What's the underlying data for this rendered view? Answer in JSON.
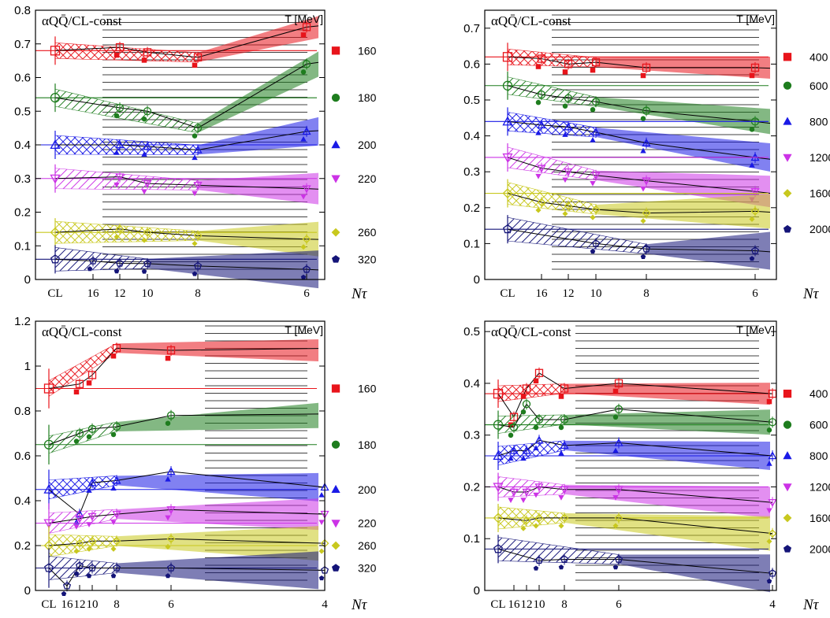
{
  "chart_data": [
    {
      "type": "line",
      "title": "αQQ̄/CL-const",
      "xlabel": "Nτ",
      "legend_title": "T [MeV]",
      "ylim": [
        0,
        0.8
      ],
      "yticks": [
        "0",
        "0.1",
        "0.2",
        "0.3",
        "0.4",
        "0.5",
        "0.6",
        "0.7",
        "0.8"
      ],
      "xticks": [
        "CL",
        "16",
        "12",
        "10",
        "8",
        "6"
      ],
      "series": [
        {
          "name": "160",
          "color": "#e8141b",
          "marker": "square",
          "cl": 0.68,
          "values": [
            {
              "nt": 12,
              "y": 0.69
            },
            {
              "nt": 10,
              "y": 0.675
            },
            {
              "nt": 8,
              "y": 0.66
            },
            {
              "nt": 6,
              "y": 0.75
            }
          ]
        },
        {
          "name": "180",
          "color": "#1e7d1e",
          "marker": "circle",
          "cl": 0.54,
          "values": [
            {
              "nt": 12,
              "y": 0.51
            },
            {
              "nt": 10,
              "y": 0.5
            },
            {
              "nt": 8,
              "y": 0.45
            },
            {
              "nt": 6,
              "y": 0.64
            }
          ]
        },
        {
          "name": "200",
          "color": "#1a1ae6",
          "marker": "triangle-up",
          "cl": 0.4,
          "values": [
            {
              "nt": 12,
              "y": 0.4
            },
            {
              "nt": 10,
              "y": 0.395
            },
            {
              "nt": 8,
              "y": 0.385
            },
            {
              "nt": 6,
              "y": 0.44
            }
          ]
        },
        {
          "name": "220",
          "color": "#cc33e6",
          "marker": "triangle-down",
          "cl": 0.3,
          "values": [
            {
              "nt": 12,
              "y": 0.305
            },
            {
              "nt": 10,
              "y": 0.285
            },
            {
              "nt": 8,
              "y": 0.28
            },
            {
              "nt": 6,
              "y": 0.27
            }
          ]
        },
        {
          "name": "260",
          "color": "#c8c81e",
          "marker": "diamond",
          "cl": 0.14,
          "values": [
            {
              "nt": 12,
              "y": 0.15
            },
            {
              "nt": 10,
              "y": 0.14
            },
            {
              "nt": 8,
              "y": 0.13
            },
            {
              "nt": 6,
              "y": 0.12
            }
          ]
        },
        {
          "name": "320",
          "color": "#141478",
          "marker": "pentagon",
          "cl": 0.06,
          "values": [
            {
              "nt": 16,
              "y": 0.055
            },
            {
              "nt": 12,
              "y": 0.048
            },
            {
              "nt": 10,
              "y": 0.047
            },
            {
              "nt": 8,
              "y": 0.04
            },
            {
              "nt": 6,
              "y": 0.03
            }
          ]
        }
      ]
    },
    {
      "type": "line",
      "title": "αQQ̄/CL-const",
      "xlabel": "Nτ",
      "legend_title": "T [MeV]",
      "ylim": [
        0,
        0.75
      ],
      "yticks": [
        "0",
        "0.1",
        "0.2",
        "0.3",
        "0.4",
        "0.5",
        "0.6",
        "0.7"
      ],
      "xticks": [
        "CL",
        "16",
        "12",
        "10",
        "8",
        "6"
      ],
      "series": [
        {
          "name": "400",
          "color": "#e8141b",
          "marker": "square",
          "cl": 0.62,
          "values": [
            {
              "nt": 16,
              "y": 0.615
            },
            {
              "nt": 12,
              "y": 0.6
            },
            {
              "nt": 10,
              "y": 0.605
            },
            {
              "nt": 8,
              "y": 0.59
            },
            {
              "nt": 6,
              "y": 0.59
            }
          ]
        },
        {
          "name": "600",
          "color": "#1e7d1e",
          "marker": "circle",
          "cl": 0.54,
          "values": [
            {
              "nt": 16,
              "y": 0.515
            },
            {
              "nt": 12,
              "y": 0.505
            },
            {
              "nt": 10,
              "y": 0.495
            },
            {
              "nt": 8,
              "y": 0.47
            },
            {
              "nt": 6,
              "y": 0.44
            }
          ]
        },
        {
          "name": "800",
          "color": "#1a1ae6",
          "marker": "triangle-up",
          "cl": 0.44,
          "values": [
            {
              "nt": 16,
              "y": 0.43
            },
            {
              "nt": 12,
              "y": 0.425
            },
            {
              "nt": 10,
              "y": 0.41
            },
            {
              "nt": 8,
              "y": 0.38
            },
            {
              "nt": 6,
              "y": 0.34
            }
          ]
        },
        {
          "name": "1200",
          "color": "#cc33e6",
          "marker": "triangle-down",
          "cl": 0.34,
          "values": [
            {
              "nt": 16,
              "y": 0.31
            },
            {
              "nt": 12,
              "y": 0.3
            },
            {
              "nt": 10,
              "y": 0.29
            },
            {
              "nt": 8,
              "y": 0.275
            },
            {
              "nt": 6,
              "y": 0.245
            }
          ]
        },
        {
          "name": "1600",
          "color": "#c8c81e",
          "marker": "diamond",
          "cl": 0.24,
          "values": [
            {
              "nt": 16,
              "y": 0.215
            },
            {
              "nt": 12,
              "y": 0.205
            },
            {
              "nt": 10,
              "y": 0.195
            },
            {
              "nt": 8,
              "y": 0.185
            },
            {
              "nt": 6,
              "y": 0.19
            }
          ]
        },
        {
          "name": "2000",
          "color": "#141478",
          "marker": "pentagon",
          "cl": 0.14,
          "values": [
            {
              "nt": 10,
              "y": 0.1
            },
            {
              "nt": 8,
              "y": 0.085
            },
            {
              "nt": 6,
              "y": 0.08
            }
          ]
        }
      ]
    },
    {
      "type": "line",
      "title": "αQQ̄/CL-const",
      "xlabel": "Nτ",
      "legend_title": "T [MeV]",
      "ylim": [
        0,
        1.2
      ],
      "yticks": [
        "0",
        "0.2",
        "0.4",
        "0.6",
        "0.8",
        "1",
        "1.2"
      ],
      "xticks": [
        "CL",
        "16",
        "12",
        "10",
        "8",
        "6",
        "4"
      ],
      "series": [
        {
          "name": "160",
          "color": "#e8141b",
          "marker": "square",
          "cl": 0.9,
          "values": [
            {
              "nt": 12,
              "y": 0.92
            },
            {
              "nt": 10,
              "y": 0.96
            },
            {
              "nt": 8,
              "y": 1.08
            },
            {
              "nt": 6,
              "y": 1.07
            }
          ]
        },
        {
          "name": "180",
          "color": "#1e7d1e",
          "marker": "circle",
          "cl": 0.65,
          "values": [
            {
              "nt": 12,
              "y": 0.7
            },
            {
              "nt": 10,
              "y": 0.72
            },
            {
              "nt": 8,
              "y": 0.73
            },
            {
              "nt": 6,
              "y": 0.78
            }
          ]
        },
        {
          "name": "200",
          "color": "#1a1ae6",
          "marker": "triangle-up",
          "cl": 0.45,
          "values": [
            {
              "nt": 12,
              "y": 0.34
            },
            {
              "nt": 10,
              "y": 0.48
            },
            {
              "nt": 8,
              "y": 0.49
            },
            {
              "nt": 6,
              "y": 0.53
            },
            {
              "nt": 4,
              "y": 0.46
            }
          ]
        },
        {
          "name": "220",
          "color": "#cc33e6",
          "marker": "triangle-down",
          "cl": 0.3,
          "values": [
            {
              "nt": 12,
              "y": 0.32
            },
            {
              "nt": 10,
              "y": 0.33
            },
            {
              "nt": 8,
              "y": 0.34
            },
            {
              "nt": 6,
              "y": 0.36
            },
            {
              "nt": 4,
              "y": 0.34
            }
          ]
        },
        {
          "name": "260",
          "color": "#c8c81e",
          "marker": "diamond",
          "cl": 0.2,
          "values": [
            {
              "nt": 12,
              "y": 0.21
            },
            {
              "nt": 10,
              "y": 0.22
            },
            {
              "nt": 8,
              "y": 0.22
            },
            {
              "nt": 6,
              "y": 0.23
            },
            {
              "nt": 4,
              "y": 0.21
            }
          ]
        },
        {
          "name": "320",
          "color": "#141478",
          "marker": "pentagon",
          "cl": 0.1,
          "values": [
            {
              "nt": 16,
              "y": 0.02
            },
            {
              "nt": 12,
              "y": 0.11
            },
            {
              "nt": 10,
              "y": 0.1
            },
            {
              "nt": 8,
              "y": 0.1
            },
            {
              "nt": 6,
              "y": 0.1
            },
            {
              "nt": 4,
              "y": 0.09
            }
          ]
        }
      ]
    },
    {
      "type": "line",
      "title": "αQQ̄/CL-const",
      "xlabel": "Nτ",
      "legend_title": "T [MeV]",
      "ylim": [
        0,
        0.52
      ],
      "yticks": [
        "0",
        "0.1",
        "0.2",
        "0.3",
        "0.4",
        "0.5"
      ],
      "xticks": [
        "CL",
        "16",
        "12",
        "10",
        "8",
        "6",
        "4"
      ],
      "series": [
        {
          "name": "400",
          "color": "#e8141b",
          "marker": "square",
          "cl": 0.38,
          "values": [
            {
              "nt": 16,
              "y": 0.335
            },
            {
              "nt": 12,
              "y": 0.39
            },
            {
              "nt": 10,
              "y": 0.42
            },
            {
              "nt": 8,
              "y": 0.39
            },
            {
              "nt": 6,
              "y": 0.4
            },
            {
              "nt": 4,
              "y": 0.38
            }
          ]
        },
        {
          "name": "600",
          "color": "#1e7d1e",
          "marker": "circle",
          "cl": 0.32,
          "values": [
            {
              "nt": 16,
              "y": 0.315
            },
            {
              "nt": 12,
              "y": 0.36
            },
            {
              "nt": 10,
              "y": 0.33
            },
            {
              "nt": 8,
              "y": 0.33
            },
            {
              "nt": 6,
              "y": 0.35
            },
            {
              "nt": 4,
              "y": 0.325
            }
          ]
        },
        {
          "name": "800",
          "color": "#1a1ae6",
          "marker": "triangle-up",
          "cl": 0.26,
          "values": [
            {
              "nt": 16,
              "y": 0.27
            },
            {
              "nt": 12,
              "y": 0.27
            },
            {
              "nt": 10,
              "y": 0.29
            },
            {
              "nt": 8,
              "y": 0.28
            },
            {
              "nt": 6,
              "y": 0.285
            },
            {
              "nt": 4,
              "y": 0.26
            }
          ]
        },
        {
          "name": "1200",
          "color": "#cc33e6",
          "marker": "triangle-down",
          "cl": 0.2,
          "values": [
            {
              "nt": 16,
              "y": 0.19
            },
            {
              "nt": 12,
              "y": 0.19
            },
            {
              "nt": 10,
              "y": 0.2
            },
            {
              "nt": 8,
              "y": 0.195
            },
            {
              "nt": 6,
              "y": 0.195
            },
            {
              "nt": 4,
              "y": 0.17
            }
          ]
        },
        {
          "name": "1600",
          "color": "#c8c81e",
          "marker": "diamond",
          "cl": 0.14,
          "values": [
            {
              "nt": 12,
              "y": 0.135
            },
            {
              "nt": 10,
              "y": 0.14
            },
            {
              "nt": 8,
              "y": 0.14
            },
            {
              "nt": 6,
              "y": 0.14
            },
            {
              "nt": 4,
              "y": 0.11
            }
          ]
        },
        {
          "name": "2000",
          "color": "#141478",
          "marker": "pentagon",
          "cl": 0.08,
          "values": [
            {
              "nt": 10,
              "y": 0.058
            },
            {
              "nt": 8,
              "y": 0.06
            },
            {
              "nt": 6,
              "y": 0.06
            },
            {
              "nt": 4,
              "y": 0.033
            }
          ]
        }
      ]
    }
  ]
}
